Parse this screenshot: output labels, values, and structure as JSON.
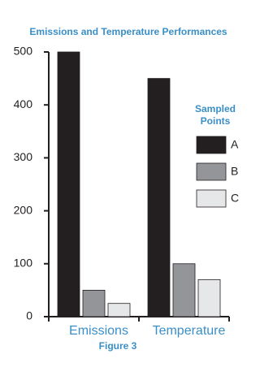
{
  "chart_data": {
    "type": "bar",
    "title": "Emissions and Temperature Performances",
    "caption": "Figure 3",
    "legend_title": "Sampled Points",
    "categories": [
      "Emissions",
      "Temperature"
    ],
    "series": [
      {
        "name": "A",
        "color": "#231f20",
        "values": [
          500,
          450
        ]
      },
      {
        "name": "B",
        "color": "#939598",
        "values": [
          50,
          100
        ]
      },
      {
        "name": "C",
        "color": "#e6e7e8",
        "values": [
          25,
          70
        ]
      }
    ],
    "ylim": [
      0,
      500
    ],
    "yticks": [
      0,
      100,
      200,
      300,
      400,
      500
    ],
    "legend": "right"
  }
}
